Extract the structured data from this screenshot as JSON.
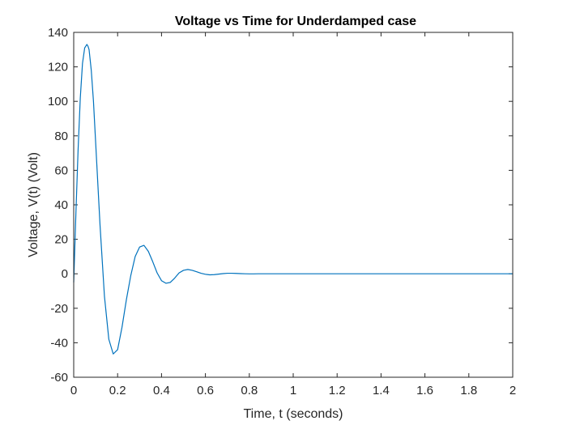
{
  "chart_data": {
    "type": "line",
    "title": "Voltage vs Time for Underdamped case",
    "xlabel": "Time, t (seconds)",
    "ylabel": "Voltage, V(t) (Volt)",
    "xlim": [
      0,
      2
    ],
    "ylim": [
      -60,
      140
    ],
    "xticks": [
      0,
      0.2,
      0.4,
      0.6,
      0.8,
      1,
      1.2,
      1.4,
      1.6,
      1.8,
      2
    ],
    "xtick_labels": [
      "0",
      "0.2",
      "0.4",
      "0.6",
      "0.8",
      "1",
      "1.2",
      "1.4",
      "1.6",
      "1.8",
      "2"
    ],
    "yticks": [
      -60,
      -40,
      -20,
      0,
      20,
      40,
      60,
      80,
      100,
      120,
      140
    ],
    "ytick_labels": [
      "-60",
      "-40",
      "-20",
      "0",
      "20",
      "40",
      "60",
      "80",
      "100",
      "120",
      "140"
    ],
    "grid": false,
    "legend": false,
    "line_color": "#0072BD",
    "series": [
      {
        "x": [
          0,
          0.01,
          0.02,
          0.03,
          0.04,
          0.05,
          0.06,
          0.065,
          0.07,
          0.08,
          0.09,
          0.1,
          0.12,
          0.14,
          0.16,
          0.18,
          0.2,
          0.22,
          0.24,
          0.26,
          0.28,
          0.3,
          0.32,
          0.34,
          0.36,
          0.38,
          0.4,
          0.42,
          0.44,
          0.46,
          0.48,
          0.5,
          0.52,
          0.54,
          0.56,
          0.58,
          0.6,
          0.62,
          0.64,
          0.66,
          0.68,
          0.7,
          0.72,
          0.74,
          0.76,
          0.78,
          0.8,
          0.82,
          0.84,
          0.86,
          0.88,
          0.9,
          0.95,
          1.0,
          1.05,
          1.1,
          1.15,
          1.2,
          1.3,
          1.4,
          1.5,
          1.6,
          1.7,
          1.8,
          1.9,
          2.0
        ],
        "y": [
          -5,
          35,
          72,
          102,
          122,
          131,
          133,
          132,
          130,
          118,
          100,
          76,
          28,
          -13,
          -38,
          -46.5,
          -44,
          -31,
          -15,
          -1,
          10,
          15.5,
          16.5,
          13,
          7,
          0.5,
          -4,
          -5.5,
          -5,
          -2.5,
          0.5,
          2,
          2.5,
          2,
          1.2,
          0.3,
          -0.3,
          -0.6,
          -0.5,
          -0.2,
          0.1,
          0.3,
          0.3,
          0.2,
          0.1,
          0,
          -0.05,
          -0.05,
          0,
          0,
          0,
          0,
          0,
          0,
          0,
          0,
          0,
          0,
          0,
          0,
          0,
          0,
          0,
          0,
          0,
          0
        ]
      }
    ]
  }
}
